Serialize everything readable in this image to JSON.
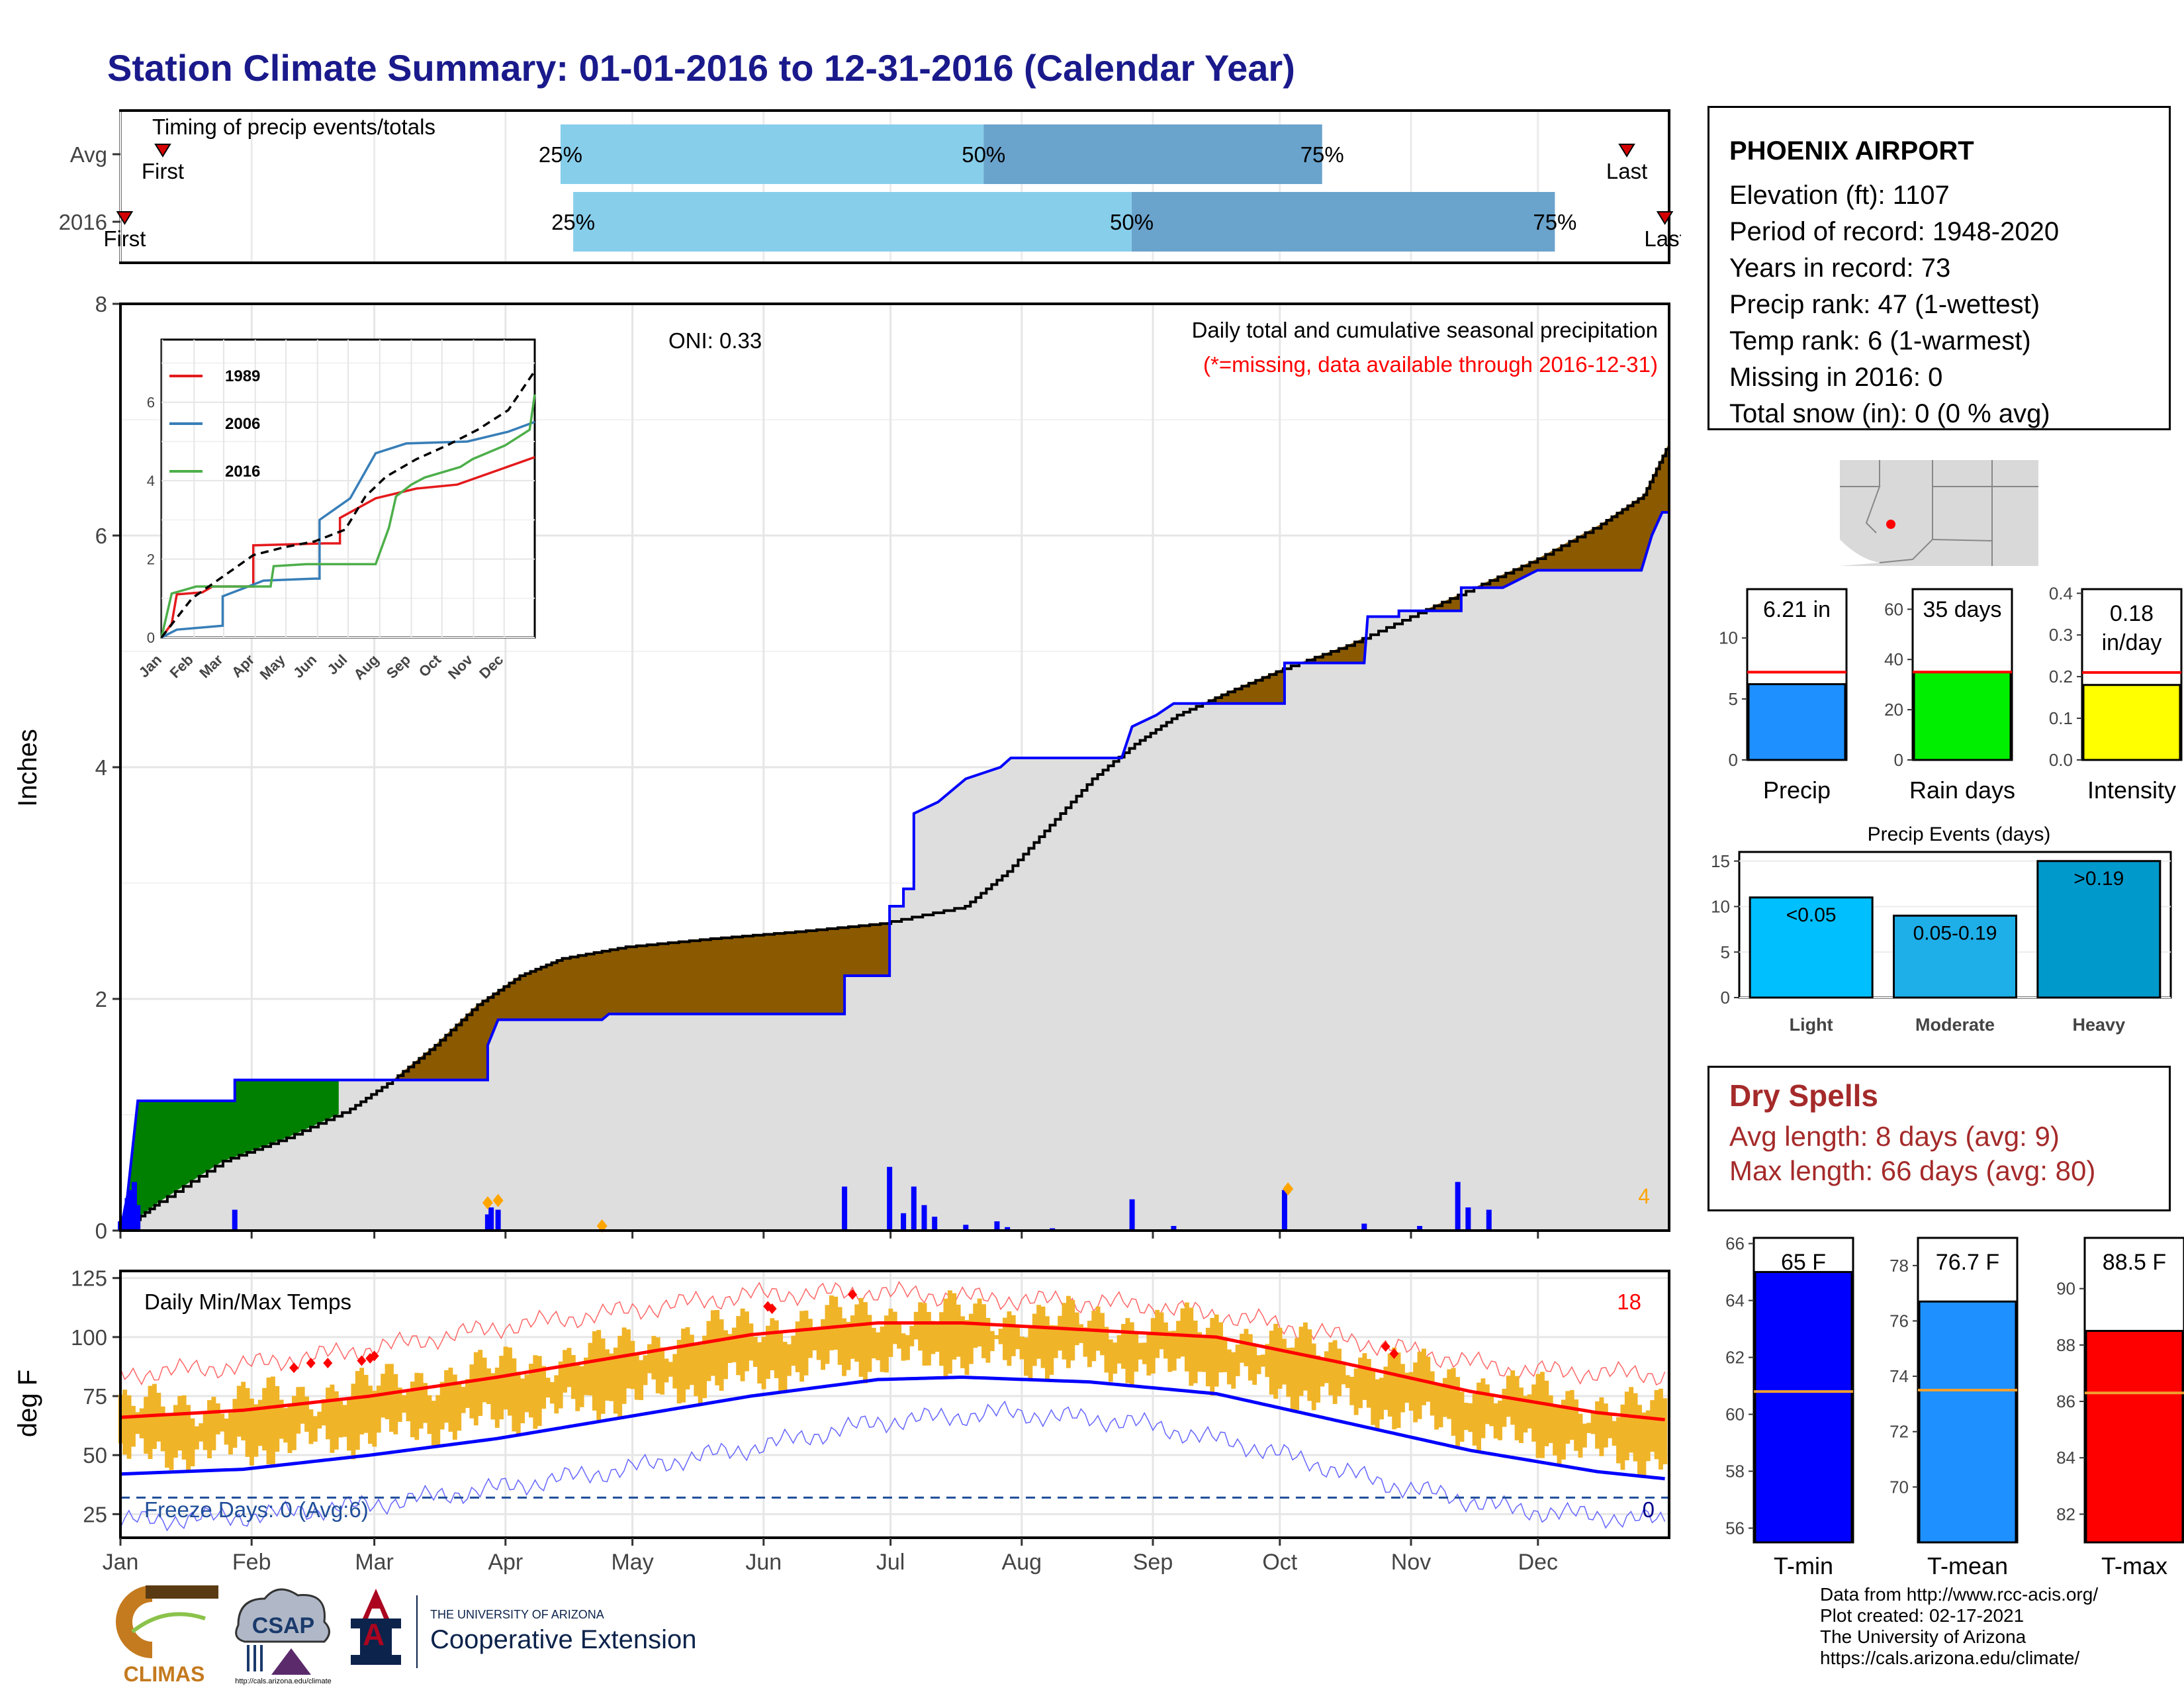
{
  "title": "Station Climate Summary: 01-01-2016 to 12-31-2016 (Calendar Year)",
  "timing": {
    "header": "Timing of precip events/totals",
    "rows": [
      {
        "label": "Avg",
        "first_label": "First",
        "last_label": "Last",
        "first_doy": 11,
        "last_doy": 357,
        "q25_doy": 105,
        "q50_doy": 205,
        "q75_doy": 285,
        "q25_label": "25%",
        "q50_label": "50%",
        "q75_label": "75%"
      },
      {
        "label": "2016",
        "first_label": "First",
        "last_label": "Last",
        "first_doy": 2,
        "last_doy": 366,
        "q25_doy": 108,
        "q50_doy": 240,
        "q75_doy": 340,
        "q25_label": "25%",
        "q50_label": "50%",
        "q75_label": "75%"
      }
    ]
  },
  "precip": {
    "ylabel": "Inches",
    "yticks": [
      0,
      2,
      4,
      6,
      8
    ],
    "ylim": [
      0,
      8
    ],
    "oni": "ONI: 0.33",
    "note": "Daily total and cumulative seasonal precipitation",
    "missing_note": "(*=missing, data available through 2016-12-31)",
    "edge_count": "4",
    "normal_cum": [
      [
        1,
        0
      ],
      [
        10,
        0.25
      ],
      [
        25,
        0.6
      ],
      [
        40,
        0.8
      ],
      [
        55,
        1.05
      ],
      [
        65,
        1.3
      ],
      [
        75,
        1.6
      ],
      [
        85,
        1.95
      ],
      [
        95,
        2.2
      ],
      [
        105,
        2.35
      ],
      [
        120,
        2.45
      ],
      [
        140,
        2.52
      ],
      [
        160,
        2.58
      ],
      [
        180,
        2.65
      ],
      [
        200,
        2.8
      ],
      [
        210,
        3.1
      ],
      [
        220,
        3.5
      ],
      [
        230,
        3.9
      ],
      [
        240,
        4.2
      ],
      [
        250,
        4.45
      ],
      [
        262,
        4.65
      ],
      [
        275,
        4.85
      ],
      [
        290,
        5.05
      ],
      [
        305,
        5.3
      ],
      [
        320,
        5.55
      ],
      [
        335,
        5.8
      ],
      [
        350,
        6.1
      ],
      [
        360,
        6.35
      ],
      [
        366,
        6.8
      ]
    ],
    "observed_cum": [
      [
        1,
        0
      ],
      [
        3,
        0.3
      ],
      [
        6,
        1.12
      ],
      [
        34,
        1.12
      ],
      [
        34,
        1.3
      ],
      [
        107,
        1.3
      ],
      [
        107,
        1.6
      ],
      [
        110,
        1.82
      ],
      [
        140,
        1.82
      ],
      [
        142,
        1.87
      ],
      [
        210,
        1.87
      ],
      [
        210,
        2.2
      ],
      [
        223,
        2.2
      ],
      [
        223,
        2.8
      ],
      [
        227,
        2.8
      ],
      [
        227,
        2.95
      ],
      [
        230,
        2.95
      ],
      [
        230,
        3.6
      ],
      [
        237,
        3.7
      ],
      [
        245,
        3.9
      ],
      [
        255,
        4.0
      ],
      [
        258,
        4.08
      ],
      [
        290,
        4.08
      ],
      [
        293,
        4.35
      ],
      [
        300,
        4.45
      ],
      [
        305,
        4.55
      ],
      [
        337,
        4.55
      ],
      [
        337,
        4.9
      ],
      [
        360,
        4.9
      ],
      [
        361,
        5.3
      ],
      [
        370,
        5.3
      ],
      [
        370,
        5.35
      ],
      [
        388,
        5.35
      ],
      [
        388,
        5.55
      ],
      [
        400,
        5.55
      ],
      [
        410,
        5.7
      ],
      [
        440,
        5.7
      ],
      [
        443,
        6.0
      ],
      [
        446,
        6.2
      ],
      [
        448,
        6.2
      ]
    ],
    "daily_bars": [
      [
        1,
        0.08
      ],
      [
        2,
        0.12
      ],
      [
        3,
        0.28
      ],
      [
        4,
        0.35
      ],
      [
        5,
        0.42
      ],
      [
        6,
        0.22
      ],
      [
        34,
        0.18
      ],
      [
        107,
        0.14
      ],
      [
        108,
        0.2
      ],
      [
        110,
        0.18
      ],
      [
        140,
        0.02
      ],
      [
        210,
        0.38
      ],
      [
        223,
        0.55
      ],
      [
        227,
        0.15
      ],
      [
        230,
        0.38
      ],
      [
        233,
        0.22
      ],
      [
        236,
        0.12
      ],
      [
        245,
        0.05
      ],
      [
        254,
        0.08
      ],
      [
        257,
        0.03
      ],
      [
        270,
        0.02
      ],
      [
        293,
        0.27
      ],
      [
        305,
        0.04
      ],
      [
        337,
        0.35
      ],
      [
        360,
        0.06
      ],
      [
        376,
        0.04
      ],
      [
        387,
        0.42
      ],
      [
        390,
        0.2
      ],
      [
        396,
        0.18
      ]
    ],
    "event_markers": [
      [
        107,
        0.24
      ],
      [
        110,
        0.26
      ],
      [
        140,
        0.04
      ],
      [
        338,
        0.36
      ]
    ]
  },
  "inset": {
    "yticks": [
      0,
      2,
      4,
      6
    ],
    "months": [
      "Jan",
      "Feb",
      "Mar",
      "Apr",
      "May",
      "Jun",
      "Jul",
      "Aug",
      "Sep",
      "Oct",
      "Nov",
      "Dec"
    ],
    "series": [
      {
        "name": "1989",
        "color": "#e41a1c",
        "points": [
          [
            0,
            0
          ],
          [
            10,
            0.35
          ],
          [
            15,
            1.1
          ],
          [
            40,
            1.15
          ],
          [
            50,
            1.3
          ],
          [
            90,
            1.3
          ],
          [
            90,
            2.35
          ],
          [
            160,
            2.4
          ],
          [
            175,
            2.4
          ],
          [
            175,
            3.05
          ],
          [
            210,
            3.55
          ],
          [
            250,
            3.8
          ],
          [
            290,
            3.9
          ],
          [
            366,
            4.6
          ]
        ]
      },
      {
        "name": "2006",
        "color": "#377eb8",
        "points": [
          [
            0,
            0
          ],
          [
            15,
            0.2
          ],
          [
            60,
            0.3
          ],
          [
            60,
            1.05
          ],
          [
            80,
            1.25
          ],
          [
            100,
            1.45
          ],
          [
            150,
            1.5
          ],
          [
            155,
            1.5
          ],
          [
            155,
            3.0
          ],
          [
            185,
            3.55
          ],
          [
            210,
            4.7
          ],
          [
            240,
            4.95
          ],
          [
            300,
            5.0
          ],
          [
            340,
            5.25
          ],
          [
            366,
            5.5
          ]
        ]
      },
      {
        "name": "2016",
        "color": "#4daf4a",
        "points": [
          [
            0,
            0
          ],
          [
            10,
            1.12
          ],
          [
            34,
            1.3
          ],
          [
            107,
            1.3
          ],
          [
            110,
            1.82
          ],
          [
            142,
            1.87
          ],
          [
            210,
            1.87
          ],
          [
            223,
            2.8
          ],
          [
            230,
            3.6
          ],
          [
            245,
            3.9
          ],
          [
            258,
            4.08
          ],
          [
            293,
            4.35
          ],
          [
            305,
            4.55
          ],
          [
            337,
            4.9
          ],
          [
            361,
            5.3
          ],
          [
            366,
            6.2
          ]
        ]
      },
      {
        "name": "",
        "color": "#000000",
        "dashed": true,
        "points": [
          [
            0,
            0
          ],
          [
            30,
            1.0
          ],
          [
            60,
            1.55
          ],
          [
            90,
            2.1
          ],
          [
            120,
            2.3
          ],
          [
            150,
            2.45
          ],
          [
            180,
            2.75
          ],
          [
            200,
            3.6
          ],
          [
            220,
            4.1
          ],
          [
            250,
            4.55
          ],
          [
            280,
            4.9
          ],
          [
            310,
            5.3
          ],
          [
            340,
            5.8
          ],
          [
            366,
            6.8
          ]
        ]
      }
    ]
  },
  "temps": {
    "title": "Daily Min/Max Temps",
    "ylabel": "deg F",
    "yticks": [
      25,
      50,
      75,
      100,
      125
    ],
    "ylim": [
      15,
      128
    ],
    "count_label": "18",
    "freeze_label": "Freeze Days: 0 (Avg:6)",
    "freeze_count": "0",
    "freeze_line": 32,
    "avg_max": [
      [
        1,
        66
      ],
      [
        30,
        69
      ],
      [
        60,
        75
      ],
      [
        90,
        83
      ],
      [
        120,
        92
      ],
      [
        150,
        101
      ],
      [
        180,
        106
      ],
      [
        200,
        106
      ],
      [
        230,
        103
      ],
      [
        260,
        100
      ],
      [
        290,
        89
      ],
      [
        320,
        77
      ],
      [
        350,
        68
      ],
      [
        366,
        65
      ]
    ],
    "avg_min": [
      [
        1,
        42
      ],
      [
        30,
        44
      ],
      [
        60,
        50
      ],
      [
        90,
        57
      ],
      [
        120,
        66
      ],
      [
        150,
        75
      ],
      [
        180,
        82
      ],
      [
        200,
        83
      ],
      [
        230,
        81
      ],
      [
        260,
        76
      ],
      [
        290,
        64
      ],
      [
        320,
        52
      ],
      [
        350,
        43
      ],
      [
        366,
        40
      ]
    ],
    "rec_max": [
      [
        1,
        84
      ],
      [
        30,
        88
      ],
      [
        60,
        95
      ],
      [
        90,
        104
      ],
      [
        120,
        111
      ],
      [
        150,
        118
      ],
      [
        180,
        119
      ],
      [
        210,
        116
      ],
      [
        240,
        114
      ],
      [
        270,
        107
      ],
      [
        300,
        96
      ],
      [
        330,
        86
      ],
      [
        366,
        84
      ]
    ],
    "rec_min": [
      [
        1,
        22
      ],
      [
        30,
        24
      ],
      [
        60,
        29
      ],
      [
        90,
        36
      ],
      [
        120,
        44
      ],
      [
        150,
        53
      ],
      [
        180,
        64
      ],
      [
        210,
        68
      ],
      [
        240,
        64
      ],
      [
        270,
        53
      ],
      [
        300,
        38
      ],
      [
        330,
        27
      ],
      [
        366,
        22
      ]
    ],
    "record_markers": [
      [
        42,
        87
      ],
      [
        46,
        89
      ],
      [
        50,
        89
      ],
      [
        58,
        90
      ],
      [
        60,
        91
      ],
      [
        61,
        92
      ],
      [
        154,
        113
      ],
      [
        155,
        112
      ],
      [
        174,
        118
      ],
      [
        300,
        96
      ],
      [
        302,
        93
      ]
    ]
  },
  "months_main": [
    "Jan",
    "Feb",
    "Mar",
    "Apr",
    "May",
    "Jun",
    "Jul",
    "Aug",
    "Sep",
    "Oct",
    "Nov",
    "Dec"
  ],
  "station": {
    "name": "PHOENIX AIRPORT",
    "lines": [
      "Elevation (ft): 1107",
      "Period of record: 1948-2020",
      "Years in record: 73",
      "Precip rank: 47 (1-wettest)",
      "Temp rank: 6 (1-warmest)",
      "Missing in 2016: 0",
      "Total snow (in): 0 (0 % avg)"
    ]
  },
  "summary_bars": [
    {
      "name": "Precip",
      "value": 6.21,
      "label": "6.21 in",
      "avg": 7.2,
      "ymax": 14,
      "yticks": [
        0,
        5,
        10
      ],
      "color": "#1e90ff"
    },
    {
      "name": "Rain days",
      "value": 35,
      "label": "35 days",
      "avg": 35,
      "ymax": 68,
      "yticks": [
        0,
        20,
        40,
        60
      ],
      "color": "#00ee00"
    },
    {
      "name": "Intensity",
      "value": 0.18,
      "label": "0.18 in/day",
      "label1": "0.18",
      "label2": "in/day",
      "avg": 0.21,
      "ymax": 0.41,
      "yticks": [
        0.0,
        0.1,
        0.2,
        0.3,
        0.4
      ],
      "color": "#ffff00"
    }
  ],
  "events": {
    "title": "Precip Events (days)",
    "ymax": 16,
    "yticks": [
      0,
      5,
      10,
      15
    ],
    "categories": [
      "Light",
      "Moderate",
      "Heavy"
    ],
    "values": [
      11,
      9,
      15
    ],
    "labels": [
      "<0.05",
      "0.05-0.19",
      ">0.19"
    ],
    "colors": [
      "#00bfff",
      "#1eaee8",
      "#0099cc"
    ]
  },
  "dry_spells": {
    "title": "Dry Spells",
    "avg_length": "Avg length: 8 days (avg: 9)",
    "max_length": "Max length: 66 days (avg: 80)"
  },
  "temp_bars": [
    {
      "name": "T-min",
      "value": 65,
      "label": "65 F",
      "avg": 60.8,
      "ylim": [
        55.5,
        66.2
      ],
      "yticks": [
        56,
        58,
        60,
        62,
        64,
        66
      ],
      "color": "#0000ff"
    },
    {
      "name": "T-mean",
      "value": 76.7,
      "label": "76.7 F",
      "avg": 73.5,
      "ylim": [
        68,
        79
      ],
      "yticks": [
        70,
        72,
        74,
        76,
        78
      ],
      "color": "#1e90ff"
    },
    {
      "name": "T-max",
      "value": 88.5,
      "label": "88.5 F",
      "avg": 86.3,
      "ylim": [
        81,
        91.8
      ],
      "yticks": [
        82,
        84,
        86,
        88,
        90
      ],
      "color": "#ff0000"
    }
  ],
  "logos": {
    "climas": "CLIMAS",
    "csap": "CSAP",
    "csap_url": "http://cals.arizona.edu/climate",
    "ua_small": "THE UNIVERSITY OF ARIZONA",
    "ua_big": "Cooperative Extension"
  },
  "credits": [
    "Data from http://www.rcc-acis.org/",
    "Plot created: 02-17-2021",
    "The University of Arizona",
    "https://cals.arizona.edu/climate/"
  ]
}
